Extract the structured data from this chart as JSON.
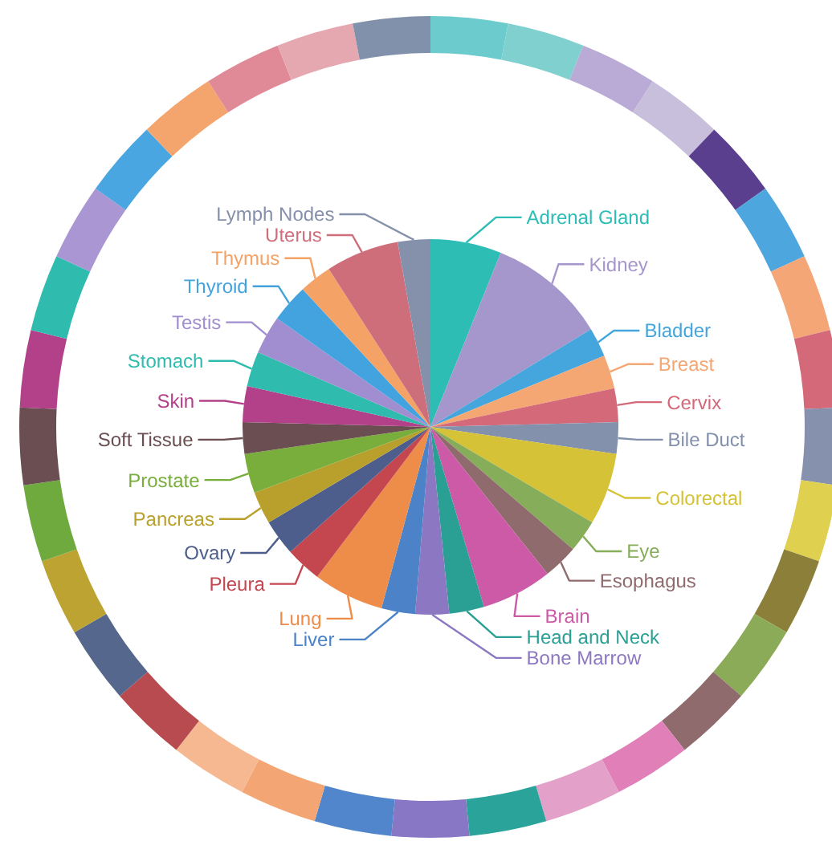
{
  "chart_data": {
    "type": "pie",
    "categories": [
      "Adrenal Gland",
      "Kidney",
      "Bladder",
      "Breast",
      "Cervix",
      "Bile Duct",
      "Colorectal",
      "Eye",
      "Esophagus",
      "Brain",
      "Head and Neck",
      "Bone Marrow",
      "Liver",
      "Lung",
      "Pleura",
      "Ovary",
      "Pancreas",
      "Prostate",
      "Soft Tissue",
      "Skin",
      "Stomach",
      "Testis",
      "Thyroid",
      "Thymus",
      "Uterus",
      "Lymph Nodes"
    ],
    "values": [
      6.1,
      10.2,
      2.5,
      2.9,
      2.9,
      2.7,
      6.2,
      2.8,
      3.0,
      6.1,
      3.0,
      2.9,
      2.9,
      6.1,
      3.1,
      3.1,
      2.8,
      3.4,
      2.7,
      3.1,
      3.0,
      3.3,
      3.3,
      2.8,
      6.3,
      2.8
    ],
    "colors": [
      "#2dbdb5",
      "#a596cc",
      "#45a6dd",
      "#f4a673",
      "#d4697a",
      "#8491ad",
      "#d6c236",
      "#86ad5a",
      "#8f6b6e",
      "#cc5aa6",
      "#2a9f94",
      "#8b77c2",
      "#4b82c8",
      "#ee8c4a",
      "#c4464f",
      "#4d5e8c",
      "#b9a02d",
      "#7aae3c",
      "#6b4e52",
      "#b3418a",
      "#2fbcae",
      "#a08ed0",
      "#43a3df",
      "#f4a266",
      "#cf6e7b",
      "#8590ab"
    ],
    "legend": false
  }
}
